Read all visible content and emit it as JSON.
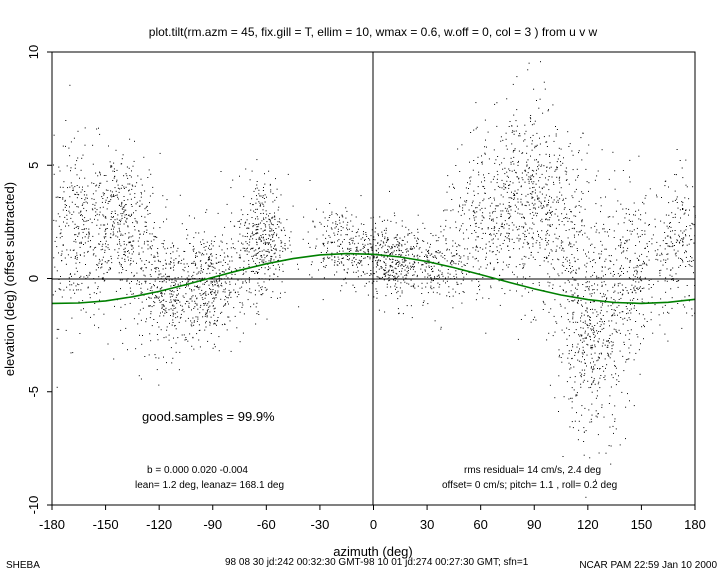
{
  "chart_data": {
    "type": "scatter",
    "title": "plot.tilt(rm.azm = 45, fix.gill = T, ellim = 10, wmax = 0.6, w.off = 0, col = 3 ) from u v w",
    "xlabel": "azimuth (deg)",
    "ylabel": "elevation (deg)  (offset subtracted)",
    "xlim": [
      -180,
      180
    ],
    "ylim": [
      -10,
      10
    ],
    "xticks": [
      "-180",
      "-150",
      "-120",
      "-90",
      "-60",
      "-30",
      "0",
      "30",
      "60",
      "90",
      "120",
      "150",
      "180"
    ],
    "yticks": [
      "-10",
      "-5",
      "0",
      "5",
      "10"
    ],
    "grid": false,
    "reference_lines": {
      "x": 0,
      "y": 0
    },
    "fit_curve": {
      "color": "#008000",
      "x": [
        -180,
        -165,
        -150,
        -135,
        -120,
        -105,
        -90,
        -75,
        -60,
        -45,
        -30,
        -15,
        0,
        15,
        30,
        45,
        60,
        75,
        90,
        105,
        120,
        135,
        150,
        165,
        180
      ],
      "y": [
        -1.1,
        -1.08,
        -0.99,
        -0.81,
        -0.57,
        -0.27,
        0.05,
        0.36,
        0.65,
        0.88,
        1.04,
        1.1,
        1.07,
        0.95,
        0.75,
        0.48,
        0.17,
        -0.15,
        -0.46,
        -0.73,
        -0.93,
        -1.06,
        -1.1,
        -1.05,
        -0.92
      ]
    },
    "scatter_clusters": [
      {
        "x": -165,
        "y": 2.0,
        "sx": 12,
        "sy": 2.0,
        "n": 400
      },
      {
        "x": -140,
        "y": 2.5,
        "sx": 10,
        "sy": 1.5,
        "n": 350
      },
      {
        "x": -115,
        "y": -0.6,
        "sx": 12,
        "sy": 1.3,
        "n": 450
      },
      {
        "x": -90,
        "y": -0.2,
        "sx": 9,
        "sy": 1.2,
        "n": 350
      },
      {
        "x": -62,
        "y": 1.8,
        "sx": 7,
        "sy": 1.4,
        "n": 400
      },
      {
        "x": -20,
        "y": 1.5,
        "sx": 8,
        "sy": 0.8,
        "n": 200
      },
      {
        "x": 5,
        "y": 1.0,
        "sx": 10,
        "sy": 0.8,
        "n": 350
      },
      {
        "x": 30,
        "y": 0.6,
        "sx": 12,
        "sy": 0.9,
        "n": 300
      },
      {
        "x": 62,
        "y": 2.5,
        "sx": 12,
        "sy": 1.6,
        "n": 300
      },
      {
        "x": 85,
        "y": 3.5,
        "sx": 10,
        "sy": 2.2,
        "n": 450
      },
      {
        "x": 110,
        "y": 2.0,
        "sx": 10,
        "sy": 2.0,
        "n": 300
      },
      {
        "x": 122,
        "y": -3.0,
        "sx": 10,
        "sy": 2.0,
        "n": 450
      },
      {
        "x": 145,
        "y": 0.5,
        "sx": 10,
        "sy": 1.8,
        "n": 300
      },
      {
        "x": 172,
        "y": 1.5,
        "sx": 8,
        "sy": 1.5,
        "n": 250
      }
    ]
  },
  "annotations": {
    "good_samples": "good.samples = 99.9%",
    "b_values": "b =  0.000  0.020 -0.004",
    "lean": "lean= 1.2 deg, leanaz= 168.1 deg",
    "rms": "rms residual= 14 cm/s, 2.4 deg",
    "offset": "offset= 0 cm/s; pitch= 1.1 , roll= 0.2 deg"
  },
  "footer": {
    "left": "SHEBA",
    "center": "98 08 30 jd:242 00:32:30 GMT-98 10 01 jd:274 00:27:30 GMT; sfn=1",
    "right": "NCAR PAM 22:59 Jan 10 2000"
  },
  "colors": {
    "points": "#000000",
    "fit": "#008000",
    "axes": "#000000"
  }
}
